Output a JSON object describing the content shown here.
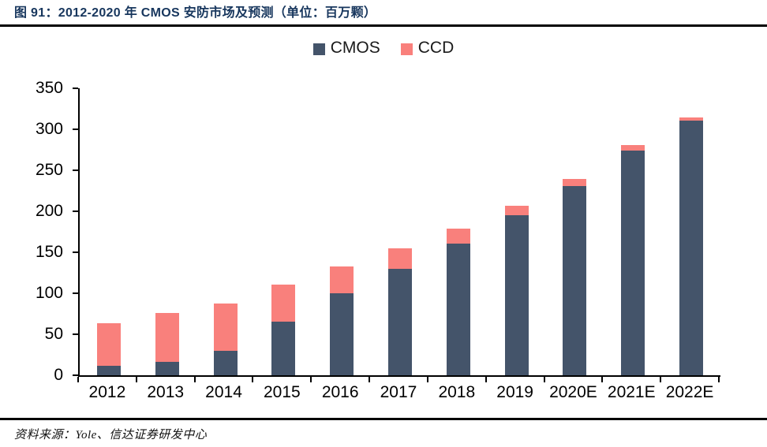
{
  "figure": {
    "title": "图 91：2012-2020 年 CMOS 安防市场及预测（单位：百万颗）",
    "source": "资料来源：Yole、信达证券研发中心"
  },
  "colors": {
    "cmos_bar": "#44546A",
    "ccd_bar": "#F9807C",
    "title_navy": "#17365D",
    "rule_black": "#000000"
  },
  "chart_data": {
    "type": "bar",
    "stacked": true,
    "title": "图 91：2012-2020 年 CMOS 安防市场及预测（单位：百万颗）",
    "unit": "百万颗",
    "xlabel": "",
    "ylabel": "",
    "categories": [
      "2012",
      "2013",
      "2014",
      "2015",
      "2016",
      "2017",
      "2018",
      "2019",
      "2020E",
      "2021E",
      "2022E"
    ],
    "series": [
      {
        "name": "CMOS",
        "color": "#44546A",
        "values": [
          12,
          16,
          30,
          65,
          100,
          130,
          161,
          195,
          231,
          274,
          311
        ]
      },
      {
        "name": "CCD",
        "color": "#F9807C",
        "values": [
          52,
          60,
          58,
          45,
          33,
          25,
          18,
          12,
          9,
          7,
          4
        ]
      }
    ],
    "ylim": [
      0,
      350
    ],
    "ytick_step": 50,
    "grid": false,
    "legend_position": "top-center"
  }
}
